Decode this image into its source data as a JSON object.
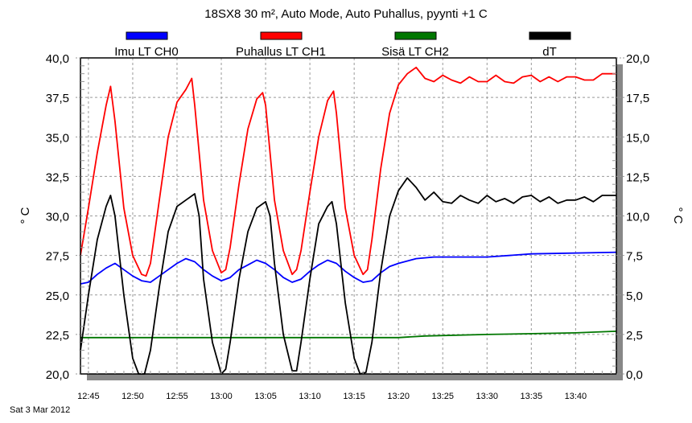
{
  "chart_data": {
    "type": "line",
    "title": "18SX8 30 m², Auto Mode, Auto Puhallus, pyynti +1 C",
    "date_label": "Sat 3 Mar 2012",
    "ylabel": "° C",
    "y2label": "° C",
    "ylim": [
      20,
      40
    ],
    "y2lim": [
      0,
      20
    ],
    "xlim": [
      "12:44:06",
      "13:44:36"
    ],
    "yticks": [
      "20,0",
      "22,5",
      "25,0",
      "27,5",
      "30,0",
      "32,5",
      "35,0",
      "37,5",
      "40,0"
    ],
    "y2ticks": [
      "0,0",
      "2,5",
      "5,0",
      "7,5",
      "10,0",
      "12,5",
      "15,0",
      "17,5",
      "20,0"
    ],
    "xticks": [
      "12:45",
      "12:50",
      "12:55",
      "13:00",
      "13:05",
      "13:10",
      "13:15",
      "13:20",
      "13:25",
      "13:30",
      "13:35",
      "13:40"
    ],
    "grid": true,
    "legend_position": "top",
    "series": [
      {
        "name": "Imu LT CH0",
        "color": "#0000ff",
        "axis": "left",
        "points": [
          [
            "12:44:06",
            25.7
          ],
          [
            "12:45",
            25.8
          ],
          [
            "12:46",
            26.3
          ],
          [
            "12:47",
            26.7
          ],
          [
            "12:48",
            27.0
          ],
          [
            "12:49",
            26.6
          ],
          [
            "12:50",
            26.2
          ],
          [
            "12:51",
            25.9
          ],
          [
            "12:52",
            25.8
          ],
          [
            "12:53",
            26.2
          ],
          [
            "12:54",
            26.6
          ],
          [
            "12:55",
            27.0
          ],
          [
            "12:56",
            27.3
          ],
          [
            "12:57",
            27.1
          ],
          [
            "12:58",
            26.6
          ],
          [
            "12:59",
            26.2
          ],
          [
            "13:00",
            25.9
          ],
          [
            "13:01",
            26.1
          ],
          [
            "13:02",
            26.6
          ],
          [
            "13:03",
            26.9
          ],
          [
            "13:04",
            27.2
          ],
          [
            "13:05",
            27.0
          ],
          [
            "13:06",
            26.6
          ],
          [
            "13:07",
            26.1
          ],
          [
            "13:08",
            25.8
          ],
          [
            "13:09",
            26.0
          ],
          [
            "13:10",
            26.5
          ],
          [
            "13:11",
            26.9
          ],
          [
            "13:12",
            27.2
          ],
          [
            "13:13",
            27.0
          ],
          [
            "13:14",
            26.5
          ],
          [
            "13:15",
            26.1
          ],
          [
            "13:16",
            25.8
          ],
          [
            "13:17",
            25.9
          ],
          [
            "13:18",
            26.4
          ],
          [
            "13:19",
            26.8
          ],
          [
            "13:20",
            27.0
          ],
          [
            "13:22",
            27.3
          ],
          [
            "13:24",
            27.4
          ],
          [
            "13:30",
            27.4
          ],
          [
            "13:35",
            27.6
          ],
          [
            "13:44:36",
            27.7
          ]
        ]
      },
      {
        "name": "Puhallus LT CH1",
        "color": "#ff0000",
        "axis": "left",
        "points": [
          [
            "12:44:06",
            27.5
          ],
          [
            "12:45",
            30.5
          ],
          [
            "12:46",
            34.0
          ],
          [
            "12:47",
            37.0
          ],
          [
            "12:47:30",
            38.2
          ],
          [
            "12:48",
            36.0
          ],
          [
            "12:49",
            30.5
          ],
          [
            "12:50",
            27.5
          ],
          [
            "12:51",
            26.3
          ],
          [
            "12:51:30",
            26.2
          ],
          [
            "12:52",
            27.0
          ],
          [
            "12:53",
            31.0
          ],
          [
            "12:54",
            35.0
          ],
          [
            "12:55",
            37.2
          ],
          [
            "12:56",
            38.0
          ],
          [
            "12:56:40",
            38.7
          ],
          [
            "12:57",
            37.0
          ],
          [
            "12:58",
            31.0
          ],
          [
            "12:59",
            27.8
          ],
          [
            "13:00",
            26.4
          ],
          [
            "13:00:30",
            26.6
          ],
          [
            "13:01",
            28.0
          ],
          [
            "13:02",
            32.0
          ],
          [
            "13:03",
            35.5
          ],
          [
            "13:04",
            37.4
          ],
          [
            "13:04:40",
            37.8
          ],
          [
            "13:05",
            37.0
          ],
          [
            "13:06",
            31.0
          ],
          [
            "13:07",
            27.8
          ],
          [
            "13:08",
            26.3
          ],
          [
            "13:08:30",
            26.6
          ],
          [
            "13:09",
            27.8
          ],
          [
            "13:10",
            31.5
          ],
          [
            "13:11",
            35.0
          ],
          [
            "13:12",
            37.3
          ],
          [
            "13:12:40",
            37.9
          ],
          [
            "13:13",
            36.5
          ],
          [
            "13:14",
            30.5
          ],
          [
            "13:15",
            27.5
          ],
          [
            "13:16",
            26.3
          ],
          [
            "13:16:30",
            26.6
          ],
          [
            "13:17",
            28.5
          ],
          [
            "13:18",
            33.0
          ],
          [
            "13:19",
            36.5
          ],
          [
            "13:20",
            38.3
          ],
          [
            "13:21",
            39.0
          ],
          [
            "13:22",
            39.4
          ],
          [
            "13:23",
            38.7
          ],
          [
            "13:24",
            38.5
          ],
          [
            "13:25",
            38.9
          ],
          [
            "13:26",
            38.6
          ],
          [
            "13:27",
            38.4
          ],
          [
            "13:28",
            38.8
          ],
          [
            "13:29",
            38.5
          ],
          [
            "13:30",
            38.5
          ],
          [
            "13:31",
            38.9
          ],
          [
            "13:32",
            38.5
          ],
          [
            "13:33",
            38.4
          ],
          [
            "13:34",
            38.8
          ],
          [
            "13:35",
            38.9
          ],
          [
            "13:36",
            38.5
          ],
          [
            "13:37",
            38.8
          ],
          [
            "13:38",
            38.5
          ],
          [
            "13:39",
            38.8
          ],
          [
            "13:40",
            38.8
          ],
          [
            "13:41",
            38.6
          ],
          [
            "13:42",
            38.6
          ],
          [
            "13:43",
            39.0
          ],
          [
            "13:44:36",
            39.0
          ]
        ]
      },
      {
        "name": "Sisä LT CH2",
        "color": "#007700",
        "axis": "left",
        "points": [
          [
            "12:44:06",
            22.3
          ],
          [
            "13:20",
            22.3
          ],
          [
            "13:23",
            22.4
          ],
          [
            "13:30",
            22.5
          ],
          [
            "13:40",
            22.6
          ],
          [
            "13:44:36",
            22.7
          ]
        ]
      },
      {
        "name": "dT",
        "color": "#000000",
        "axis": "right",
        "points": [
          [
            "12:44:06",
            1.5
          ],
          [
            "12:45",
            5.0
          ],
          [
            "12:46",
            8.5
          ],
          [
            "12:47",
            10.6
          ],
          [
            "12:47:30",
            11.3
          ],
          [
            "12:48",
            10.0
          ],
          [
            "12:49",
            5.0
          ],
          [
            "12:50",
            1.0
          ],
          [
            "12:50:40",
            0.0
          ],
          [
            "12:51:20",
            0.0
          ],
          [
            "12:52",
            1.5
          ],
          [
            "12:53",
            5.5
          ],
          [
            "12:54",
            9.0
          ],
          [
            "12:55",
            10.6
          ],
          [
            "12:56",
            11.0
          ],
          [
            "12:57",
            11.4
          ],
          [
            "12:57:30",
            10.0
          ],
          [
            "12:58",
            6.0
          ],
          [
            "12:59",
            2.0
          ],
          [
            "13:00",
            0.0
          ],
          [
            "13:00:30",
            0.3
          ],
          [
            "13:01",
            2.0
          ],
          [
            "13:02",
            6.0
          ],
          [
            "13:03",
            9.0
          ],
          [
            "13:04",
            10.5
          ],
          [
            "13:05",
            10.9
          ],
          [
            "13:05:30",
            10.0
          ],
          [
            "13:06",
            7.0
          ],
          [
            "13:07",
            2.5
          ],
          [
            "13:08",
            0.2
          ],
          [
            "13:08:30",
            0.2
          ],
          [
            "13:09",
            2.0
          ],
          [
            "13:10",
            6.0
          ],
          [
            "13:11",
            9.5
          ],
          [
            "13:12",
            10.6
          ],
          [
            "13:12:30",
            10.9
          ],
          [
            "13:13",
            9.5
          ],
          [
            "13:14",
            4.5
          ],
          [
            "13:15",
            1.0
          ],
          [
            "13:15:40",
            0.0
          ],
          [
            "13:16:20",
            0.1
          ],
          [
            "13:17",
            2.0
          ],
          [
            "13:18",
            6.5
          ],
          [
            "13:19",
            10.0
          ],
          [
            "13:20",
            11.6
          ],
          [
            "13:21",
            12.4
          ],
          [
            "13:22",
            11.8
          ],
          [
            "13:23",
            11.0
          ],
          [
            "13:24",
            11.5
          ],
          [
            "13:25",
            10.9
          ],
          [
            "13:26",
            10.8
          ],
          [
            "13:27",
            11.3
          ],
          [
            "13:28",
            11.0
          ],
          [
            "13:29",
            10.8
          ],
          [
            "13:30",
            11.3
          ],
          [
            "13:31",
            10.9
          ],
          [
            "13:32",
            11.1
          ],
          [
            "13:33",
            10.8
          ],
          [
            "13:34",
            11.2
          ],
          [
            "13:35",
            11.3
          ],
          [
            "13:36",
            10.9
          ],
          [
            "13:37",
            11.2
          ],
          [
            "13:38",
            10.8
          ],
          [
            "13:39",
            11.0
          ],
          [
            "13:40",
            11.0
          ],
          [
            "13:41",
            11.2
          ],
          [
            "13:42",
            10.9
          ],
          [
            "13:43",
            11.3
          ],
          [
            "13:44:36",
            11.3
          ]
        ]
      }
    ]
  }
}
